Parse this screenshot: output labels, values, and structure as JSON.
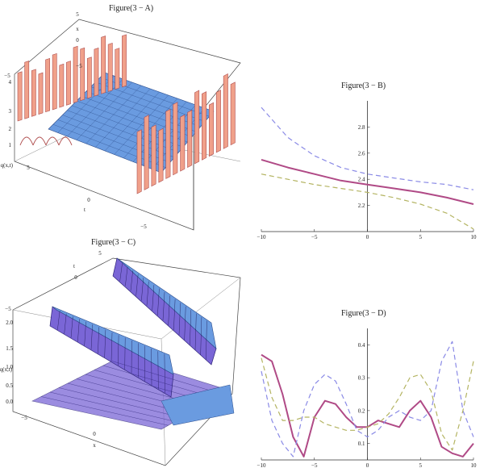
{
  "chart_data": [
    {
      "type": "surface",
      "title": "Figure(3 − A)",
      "zlabel": "q(x,t)",
      "xlabel": "x",
      "ylabel": "t",
      "z_ticks": [
        "1",
        "2",
        "3",
        "4"
      ],
      "x_ticks": [
        "5",
        "0",
        "−5"
      ],
      "t_ticks": [
        "5",
        "0",
        "−5"
      ],
      "colors": {
        "top": "#6a9be0",
        "walls": "#f0a08a",
        "wall_edge": "#b05050"
      }
    },
    {
      "type": "line",
      "title": "Figure(3 − B)",
      "xlim": [
        -10,
        10
      ],
      "ylim": [
        2.0,
        3.0
      ],
      "x_ticks": [
        "−10",
        "−5",
        "0",
        "5",
        "10"
      ],
      "y_ticks": [
        "2.2",
        "2.4",
        "2.6",
        "2.8"
      ],
      "x": [
        -10,
        -7.5,
        -5,
        -2.5,
        0,
        2.5,
        5,
        7.5,
        10
      ],
      "series": [
        {
          "color": "#b04a86",
          "style": "solid",
          "values": [
            2.55,
            2.49,
            2.44,
            2.39,
            2.36,
            2.33,
            2.3,
            2.26,
            2.21
          ]
        },
        {
          "color": "#8a8ae6",
          "style": "dashed",
          "values": [
            2.95,
            2.72,
            2.58,
            2.49,
            2.44,
            2.41,
            2.38,
            2.36,
            2.32
          ]
        },
        {
          "color": "#b4b462",
          "style": "dashed",
          "values": [
            2.44,
            2.4,
            2.36,
            2.33,
            2.3,
            2.26,
            2.21,
            2.14,
            2.02
          ]
        }
      ]
    },
    {
      "type": "surface",
      "title": "Figure(3 − C)",
      "zlabel": "q(x,t)",
      "xlabel": "x",
      "ylabel": "t",
      "z_ticks": [
        "0.0",
        "0.5",
        "1.0",
        "1.5",
        "2.0"
      ],
      "x_ticks": [
        "−5",
        "0",
        "5"
      ],
      "t_ticks": [
        "5",
        "0",
        "−5"
      ],
      "colors": {
        "top": "#6a9be0",
        "walls": "#7a66d6",
        "wall_dark": "#2e2478"
      }
    },
    {
      "type": "line",
      "title": "Figure(3 − D)",
      "xlim": [
        -10,
        10
      ],
      "ylim": [
        0.05,
        0.45
      ],
      "x_ticks": [
        "−10",
        "−5",
        "0",
        "5",
        "10"
      ],
      "y_ticks": [
        "0.1",
        "0.2",
        "0.3",
        "0.4"
      ],
      "x": [
        -10,
        -9,
        -8,
        -7,
        -6,
        -5,
        -4,
        -3,
        -2,
        -1,
        0,
        1,
        2,
        3,
        4,
        5,
        6,
        7,
        8,
        9,
        10
      ],
      "series": [
        {
          "color": "#b04a86",
          "style": "solid",
          "values": [
            0.37,
            0.35,
            0.25,
            0.12,
            0.06,
            0.18,
            0.23,
            0.22,
            0.18,
            0.15,
            0.15,
            0.17,
            0.16,
            0.15,
            0.2,
            0.23,
            0.18,
            0.09,
            0.07,
            0.06,
            0.1
          ]
        },
        {
          "color": "#8a8ae6",
          "style": "dashed",
          "values": [
            0.32,
            0.17,
            0.1,
            0.06,
            0.2,
            0.28,
            0.31,
            0.29,
            0.22,
            0.14,
            0.12,
            0.14,
            0.18,
            0.2,
            0.18,
            0.17,
            0.2,
            0.35,
            0.41,
            0.2,
            0.12
          ]
        },
        {
          "color": "#b4b462",
          "style": "dashed",
          "values": [
            0.36,
            0.24,
            0.17,
            0.17,
            0.18,
            0.18,
            0.16,
            0.15,
            0.14,
            0.14,
            0.15,
            0.16,
            0.19,
            0.24,
            0.3,
            0.31,
            0.26,
            0.13,
            0.08,
            0.2,
            0.35
          ]
        }
      ]
    }
  ]
}
